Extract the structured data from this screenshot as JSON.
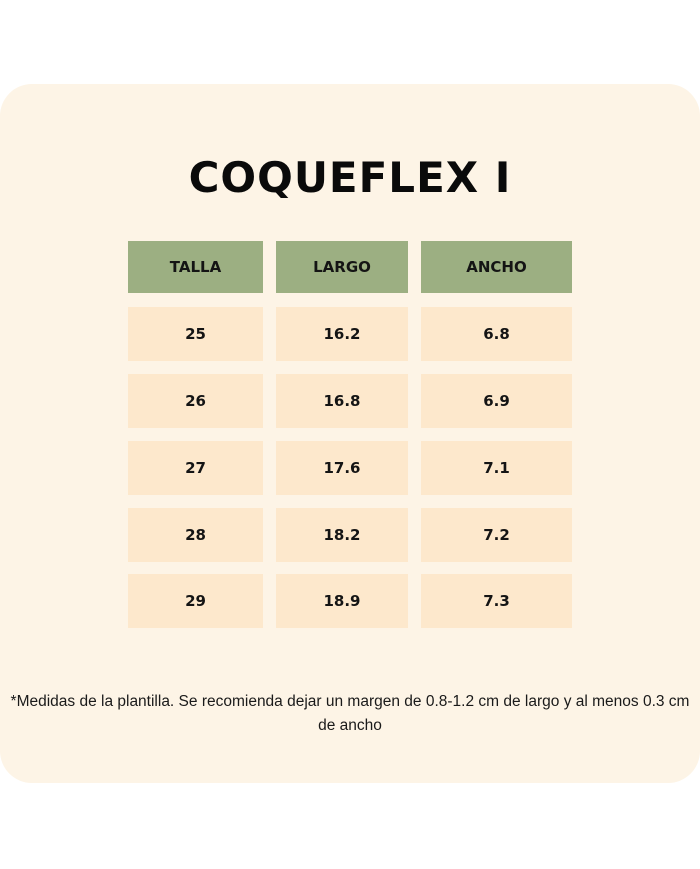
{
  "title": "COQUEFLEX I",
  "colors": {
    "background": "#fdf4e6",
    "header": "#9caf82",
    "cell": "#fde8cc"
  },
  "table": {
    "headers": [
      "TALLA",
      "LARGO",
      "ANCHO"
    ],
    "rows": [
      [
        "25",
        "16.2",
        "6.8"
      ],
      [
        "26",
        "16.8",
        "6.9"
      ],
      [
        "27",
        "17.6",
        "7.1"
      ],
      [
        "28",
        "18.2",
        "7.2"
      ],
      [
        "29",
        "18.9",
        "7.3"
      ]
    ]
  },
  "note": "*Medidas de la plantilla. Se recomienda dejar un margen de 0.8-1.2 cm de largo y al menos 0.3 cm de ancho"
}
